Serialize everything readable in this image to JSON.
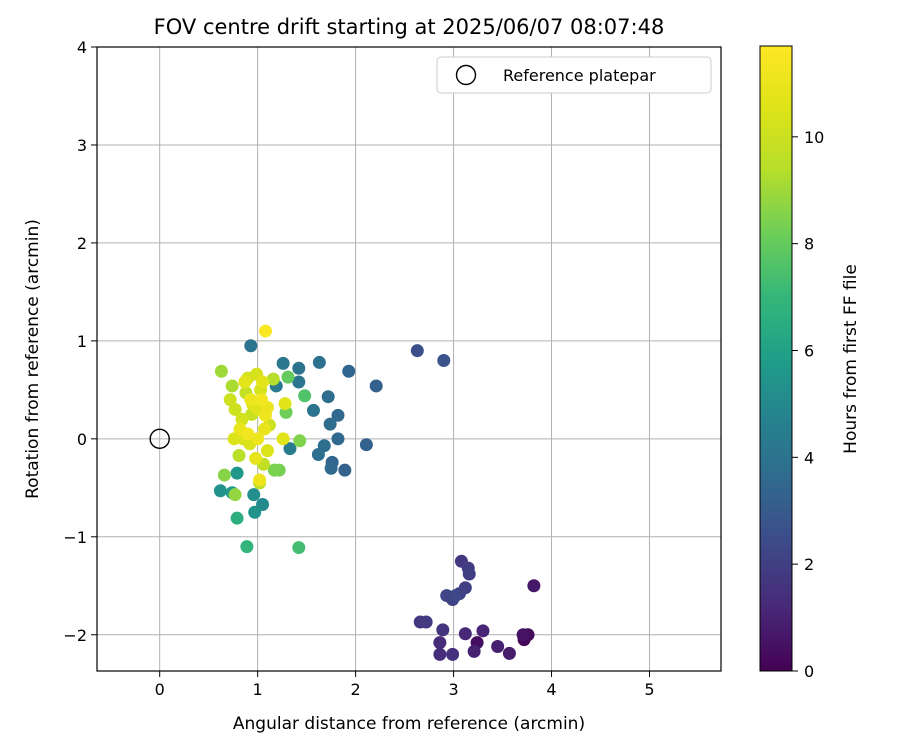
{
  "chart_data": {
    "type": "scatter",
    "title": "FOV centre drift starting at 2025/06/07 08:07:48",
    "xlabel": "Angular distance from reference (arcmin)",
    "ylabel": "Rotation from reference (arcmin)",
    "xlim": [
      -0.64,
      5.73
    ],
    "ylim": [
      -2.37,
      4.0
    ],
    "xticks": [
      0,
      1,
      2,
      3,
      4,
      5
    ],
    "xtick_labels": [
      "0",
      "1",
      "2",
      "3",
      "4",
      "5"
    ],
    "yticks": [
      -2,
      -1,
      0,
      1,
      2,
      3,
      4
    ],
    "ytick_labels": [
      "−2",
      "−1",
      "0",
      "1",
      "2",
      "3",
      "4"
    ],
    "grid": true,
    "legend": {
      "position": "top-right",
      "entries": [
        {
          "label": "Reference platepar",
          "marker": "hollow-circle",
          "color": "#000000"
        }
      ]
    },
    "reference_point": {
      "x": 0,
      "y": 0,
      "label": "Reference platepar"
    },
    "colorbar": {
      "label": "Hours from first FF file",
      "colormap": "viridis",
      "min": 0,
      "max": 11.7,
      "ticks": [
        0,
        2,
        4,
        6,
        8,
        10
      ],
      "tick_labels": [
        "0",
        "2",
        "4",
        "6",
        "8",
        "10"
      ]
    },
    "points": [
      {
        "x": 3.72,
        "y": -2.05,
        "c": 0.1
      },
      {
        "x": 3.76,
        "y": -2.0,
        "c": 0.3
      },
      {
        "x": 3.71,
        "y": -2.0,
        "c": 0.5
      },
      {
        "x": 3.24,
        "y": -2.08,
        "c": 0.4
      },
      {
        "x": 3.82,
        "y": -1.5,
        "c": 0.7
      },
      {
        "x": 3.57,
        "y": -2.19,
        "c": 0.8
      },
      {
        "x": 3.45,
        "y": -2.12,
        "c": 0.9
      },
      {
        "x": 3.21,
        "y": -2.17,
        "c": 1.0
      },
      {
        "x": 3.3,
        "y": -1.96,
        "c": 1.1
      },
      {
        "x": 3.12,
        "y": -1.99,
        "c": 1.2
      },
      {
        "x": 2.86,
        "y": -2.08,
        "c": 1.3
      },
      {
        "x": 2.86,
        "y": -2.2,
        "c": 1.4
      },
      {
        "x": 2.99,
        "y": -2.2,
        "c": 1.5
      },
      {
        "x": 2.89,
        "y": -1.95,
        "c": 1.6
      },
      {
        "x": 2.66,
        "y": -1.87,
        "c": 1.7
      },
      {
        "x": 2.72,
        "y": -1.87,
        "c": 1.8
      },
      {
        "x": 3.08,
        "y": -1.25,
        "c": 1.7
      },
      {
        "x": 3.15,
        "y": -1.32,
        "c": 1.9
      },
      {
        "x": 3.16,
        "y": -1.38,
        "c": 2.0
      },
      {
        "x": 3.12,
        "y": -1.52,
        "c": 2.0
      },
      {
        "x": 3.06,
        "y": -1.58,
        "c": 2.1
      },
      {
        "x": 2.93,
        "y": -1.6,
        "c": 2.2
      },
      {
        "x": 2.99,
        "y": -1.64,
        "c": 2.1
      },
      {
        "x": 3.02,
        "y": -1.6,
        "c": 2.3
      },
      {
        "x": 2.63,
        "y": 0.9,
        "c": 2.6
      },
      {
        "x": 2.9,
        "y": 0.8,
        "c": 2.8
      },
      {
        "x": 2.21,
        "y": 0.54,
        "c": 3.2
      },
      {
        "x": 2.11,
        "y": -0.06,
        "c": 3.3
      },
      {
        "x": 1.93,
        "y": 0.69,
        "c": 3.4
      },
      {
        "x": 1.89,
        "y": -0.32,
        "c": 3.3
      },
      {
        "x": 1.82,
        "y": 0.24,
        "c": 3.5
      },
      {
        "x": 1.82,
        "y": 0.0,
        "c": 3.5
      },
      {
        "x": 1.76,
        "y": -0.24,
        "c": 3.4
      },
      {
        "x": 1.75,
        "y": -0.3,
        "c": 3.6
      },
      {
        "x": 1.74,
        "y": 0.15,
        "c": 3.7
      },
      {
        "x": 1.72,
        "y": 0.43,
        "c": 3.7
      },
      {
        "x": 1.68,
        "y": -0.07,
        "c": 3.8
      },
      {
        "x": 1.62,
        "y": -0.16,
        "c": 3.8
      },
      {
        "x": 1.63,
        "y": 0.78,
        "c": 3.9
      },
      {
        "x": 1.57,
        "y": 0.29,
        "c": 4.0
      },
      {
        "x": 1.42,
        "y": 0.72,
        "c": 4.0
      },
      {
        "x": 1.42,
        "y": 0.58,
        "c": 4.1
      },
      {
        "x": 1.26,
        "y": 0.77,
        "c": 4.2
      },
      {
        "x": 1.19,
        "y": 0.54,
        "c": 4.3
      },
      {
        "x": 1.33,
        "y": -0.1,
        "c": 4.4
      },
      {
        "x": 0.93,
        "y": 0.95,
        "c": 4.0
      },
      {
        "x": 1.05,
        "y": -0.67,
        "c": 5.0
      },
      {
        "x": 0.96,
        "y": -0.57,
        "c": 5.2
      },
      {
        "x": 0.97,
        "y": -0.75,
        "c": 5.4
      },
      {
        "x": 0.62,
        "y": -0.53,
        "c": 5.4
      },
      {
        "x": 0.79,
        "y": -0.35,
        "c": 5.5
      },
      {
        "x": 0.74,
        "y": -0.55,
        "c": 5.6
      },
      {
        "x": 0.79,
        "y": -0.81,
        "c": 6.6
      },
      {
        "x": 0.89,
        "y": -1.1,
        "c": 6.9
      },
      {
        "x": 1.42,
        "y": -1.11,
        "c": 7.3
      },
      {
        "x": 1.48,
        "y": 0.44,
        "c": 7.6
      },
      {
        "x": 1.31,
        "y": 0.63,
        "c": 8.0
      },
      {
        "x": 1.29,
        "y": 0.27,
        "c": 8.2
      },
      {
        "x": 1.22,
        "y": -0.32,
        "c": 8.3
      },
      {
        "x": 1.17,
        "y": -0.32,
        "c": 8.4
      },
      {
        "x": 1.43,
        "y": -0.02,
        "c": 8.5
      },
      {
        "x": 0.66,
        "y": -0.37,
        "c": 8.6
      },
      {
        "x": 0.77,
        "y": -0.57,
        "c": 8.8
      },
      {
        "x": 0.63,
        "y": 0.69,
        "c": 9.0
      },
      {
        "x": 0.74,
        "y": 0.54,
        "c": 9.2
      },
      {
        "x": 1.16,
        "y": 0.61,
        "c": 9.4
      },
      {
        "x": 0.81,
        "y": -0.17,
        "c": 9.5
      },
      {
        "x": 1.02,
        "y": -0.45,
        "c": 9.6
      },
      {
        "x": 1.06,
        "y": -0.26,
        "c": 9.7
      },
      {
        "x": 0.88,
        "y": 0.47,
        "c": 9.8
      },
      {
        "x": 0.94,
        "y": 0.25,
        "c": 9.9
      },
      {
        "x": 1.12,
        "y": 0.14,
        "c": 10.0
      },
      {
        "x": 0.72,
        "y": 0.4,
        "c": 10.1
      },
      {
        "x": 0.77,
        "y": 0.3,
        "c": 10.1
      },
      {
        "x": 0.84,
        "y": 0.2,
        "c": 10.2
      },
      {
        "x": 0.9,
        "y": 0.62,
        "c": 10.2
      },
      {
        "x": 0.99,
        "y": 0.66,
        "c": 10.3
      },
      {
        "x": 1.03,
        "y": 0.5,
        "c": 10.3
      },
      {
        "x": 0.85,
        "y": 0.0,
        "c": 10.4
      },
      {
        "x": 0.92,
        "y": -0.05,
        "c": 10.4
      },
      {
        "x": 1.1,
        "y": -0.12,
        "c": 10.5
      },
      {
        "x": 0.76,
        "y": 0.0,
        "c": 10.5
      },
      {
        "x": 0.95,
        "y": 0.35,
        "c": 10.6
      },
      {
        "x": 1.0,
        "y": 0.3,
        "c": 10.6
      },
      {
        "x": 1.28,
        "y": 0.36,
        "c": 10.7
      },
      {
        "x": 1.26,
        "y": 0.0,
        "c": 10.7
      },
      {
        "x": 0.87,
        "y": 0.58,
        "c": 10.8
      },
      {
        "x": 1.05,
        "y": 0.58,
        "c": 10.8
      },
      {
        "x": 0.98,
        "y": -0.2,
        "c": 10.9
      },
      {
        "x": 1.07,
        "y": 0.1,
        "c": 10.9
      },
      {
        "x": 0.82,
        "y": 0.1,
        "c": 11.0
      },
      {
        "x": 1.1,
        "y": 0.32,
        "c": 11.0
      },
      {
        "x": 1.0,
        "y": 0.0,
        "c": 11.1
      },
      {
        "x": 0.93,
        "y": 0.4,
        "c": 11.1
      },
      {
        "x": 1.02,
        "y": -0.42,
        "c": 11.2
      },
      {
        "x": 1.08,
        "y": 0.24,
        "c": 11.2
      },
      {
        "x": 0.9,
        "y": 0.05,
        "c": 11.3
      },
      {
        "x": 1.04,
        "y": 0.4,
        "c": 11.3
      },
      {
        "x": 1.08,
        "y": 1.1,
        "c": 11.6
      }
    ]
  }
}
